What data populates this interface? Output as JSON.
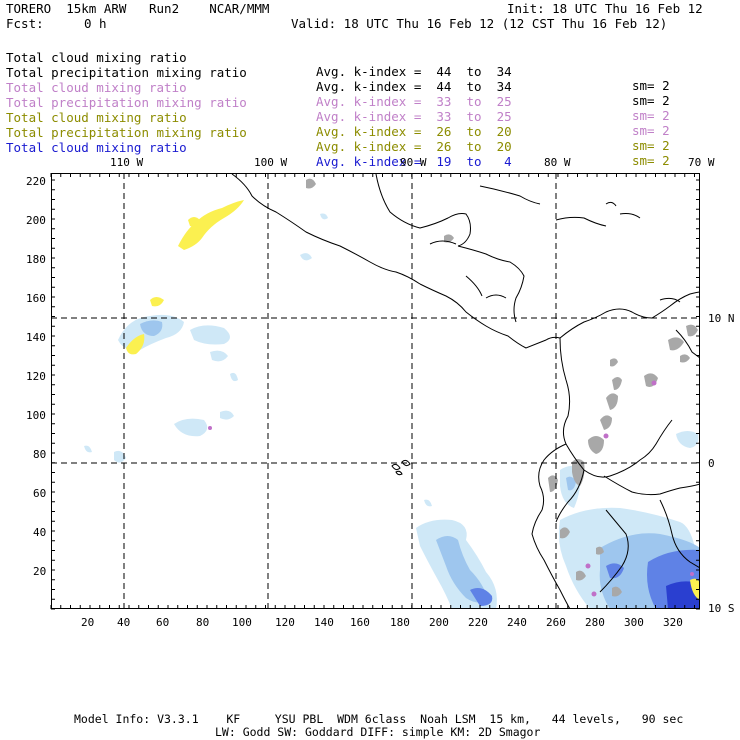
{
  "header": {
    "model_title": "TORERO  15km ARW   Run2    NCAR/MMM",
    "init": "Init: 18 UTC Thu 16 Feb 12",
    "fcst_label": "Fcst:",
    "fcst_value": "0 h",
    "valid": "Valid: 18 UTC Thu 16 Feb 12 (12 CST Thu 16 Feb 12)"
  },
  "legend_rows": [
    {
      "field": "Total cloud mixing ratio",
      "kindex": "Avg. k-index =  44  to  34",
      "sm": "sm= 2",
      "color": "#000000"
    },
    {
      "field": "Total precipitation mixing ratio",
      "kindex": "Avg. k-index =  44  to  34",
      "sm": "sm= 2",
      "color": "#000000"
    },
    {
      "field": "Total cloud mixing ratio",
      "kindex": "Avg. k-index =  33  to  25",
      "sm": "sm= 2",
      "color": "#c080c8"
    },
    {
      "field": "Total precipitation mixing ratio",
      "kindex": "Avg. k-index =  33  to  25",
      "sm": "sm= 2",
      "color": "#c080c8"
    },
    {
      "field": "Total cloud mixing ratio",
      "kindex": "Avg. k-index =  26  to  20",
      "sm": "sm= 2",
      "color": "#8c8c00"
    },
    {
      "field": "Total precipitation mixing ratio",
      "kindex": "Avg. k-index =  26  to  20",
      "sm": "sm= 2",
      "color": "#8c8c00"
    },
    {
      "field": "Total cloud mixing ratio",
      "kindex": "Avg. k-index =  19  to   4",
      "sm": "",
      "color": "#1a1ad0"
    }
  ],
  "map": {
    "lon_labels": [
      "110 W",
      "100 W",
      "90 W",
      "80 W",
      "70 W"
    ],
    "lat_labels": [
      "10 N",
      "0",
      "10 S"
    ],
    "y_ticks": [
      "220",
      "200",
      "180",
      "160",
      "140",
      "120",
      "100",
      "80",
      "60",
      "40",
      "20"
    ],
    "x_ticks": [
      "20",
      "40",
      "60",
      "80",
      "100",
      "120",
      "140",
      "160",
      "180",
      "200",
      "220",
      "240",
      "260",
      "280",
      "300",
      "320"
    ],
    "colors": {
      "cloud_light": "#cfe8f7",
      "cloud_mid": "#9ec6ee",
      "cloud_dark": "#5f82e6",
      "cloud_deep": "#2a3fd0",
      "gray": "#a8a8a8",
      "yellow": "#fbf050",
      "purple": "#c070c8"
    }
  },
  "footer": {
    "line1": "Model Info: V3.3.1    KF     YSU PBL  WDM 6class  Noah LSM  15 km,   44 levels,   90 sec",
    "line2": "LW: Godd SW: Goddard DIFF: simple KM: 2D Smagor"
  }
}
